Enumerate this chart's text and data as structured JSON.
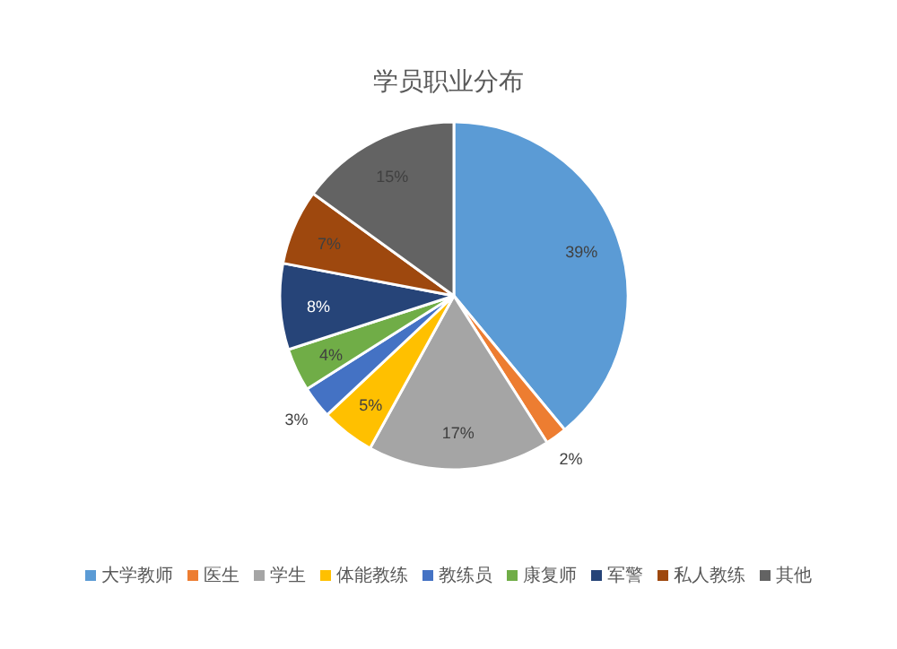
{
  "chart_data": {
    "type": "pie",
    "title": "学员职业分布",
    "categories": [
      "大学教师",
      "医生",
      "学生",
      "体能教练",
      "教练员",
      "康复师",
      "军警",
      "私人教练",
      "其他"
    ],
    "values": [
      39,
      2,
      17,
      5,
      3,
      4,
      8,
      7,
      15
    ],
    "colors": [
      "#5b9bd5",
      "#ed7d31",
      "#a5a5a5",
      "#ffc000",
      "#4472c4",
      "#70ad47",
      "#264478",
      "#9e480e",
      "#636363"
    ],
    "value_labels": [
      "39%",
      "2%",
      "17%",
      "5%",
      "3%",
      "4%",
      "8%",
      "7%",
      "15%"
    ],
    "legend": "bottom"
  }
}
